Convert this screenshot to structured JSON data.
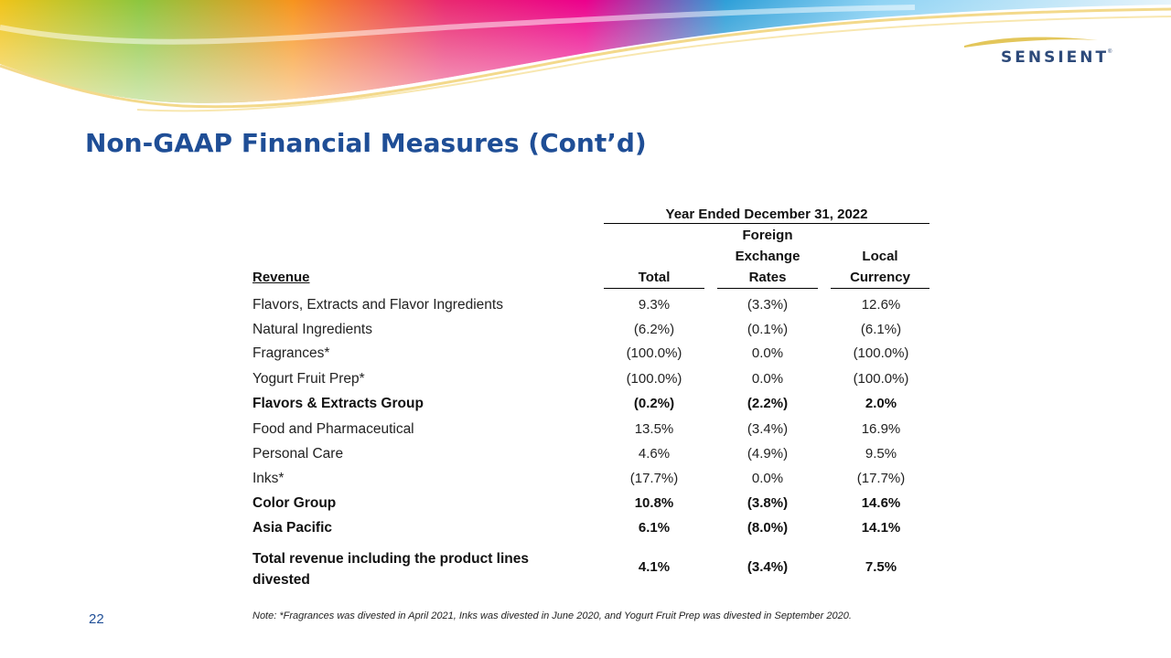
{
  "brand": {
    "logo_text": "SENSIENT",
    "trademark": "®"
  },
  "title": "Non-GAAP Financial Measures (Cont’d)",
  "table": {
    "period_header": "Year Ended December 31, 2022",
    "row_header": "Revenue",
    "columns": [
      "Total",
      "Foreign Exchange Rates",
      "Local Currency"
    ],
    "column_lines": [
      [
        "Total"
      ],
      [
        "Foreign",
        "Exchange",
        "Rates"
      ],
      [
        "Local",
        "Currency"
      ]
    ],
    "rows": [
      {
        "label": "Flavors, Extracts and Flavor Ingredients",
        "total": "9.3%",
        "fx": "(3.3%)",
        "local": "12.6%",
        "bold": false
      },
      {
        "label": "Natural Ingredients",
        "total": "(6.2%)",
        "fx": "(0.1%)",
        "local": "(6.1%)",
        "bold": false
      },
      {
        "label": "Fragrances*",
        "total": "(100.0%)",
        "fx": "0.0%",
        "local": "(100.0%)",
        "bold": false
      },
      {
        "label": "Yogurt Fruit Prep*",
        "total": "(100.0%)",
        "fx": "0.0%",
        "local": "(100.0%)",
        "bold": false
      },
      {
        "label": "Flavors & Extracts Group",
        "total": "(0.2%)",
        "fx": "(2.2%)",
        "local": "2.0%",
        "bold": true
      },
      {
        "label": "Food and Pharmaceutical",
        "total": "13.5%",
        "fx": "(3.4%)",
        "local": "16.9%",
        "bold": false
      },
      {
        "label": "Personal Care",
        "total": "4.6%",
        "fx": "(4.9%)",
        "local": "9.5%",
        "bold": false
      },
      {
        "label": "Inks*",
        "total": "(17.7%)",
        "fx": "0.0%",
        "local": "(17.7%)",
        "bold": false
      },
      {
        "label": "Color Group",
        "total": "10.8%",
        "fx": "(3.8%)",
        "local": "14.6%",
        "bold": true
      },
      {
        "label": "Asia Pacific",
        "total": "6.1%",
        "fx": "(8.0%)",
        "local": "14.1%",
        "bold": true
      },
      {
        "label": "Total revenue including the product lines divested",
        "label_lines": [
          "Total revenue including the product lines",
          "divested"
        ],
        "total": "4.1%",
        "fx": "(3.4%)",
        "local": "7.5%",
        "bold": true
      }
    ]
  },
  "page_number": "22",
  "note": "Note: *Fragrances was divested in April 2021, Inks was divested in June 2020, and Yogurt Fruit Prep was divested in September 2020.",
  "colors": {
    "title": "#1f4e96",
    "logo": "#2d4a7a",
    "swoosh": "#e3c65a"
  }
}
